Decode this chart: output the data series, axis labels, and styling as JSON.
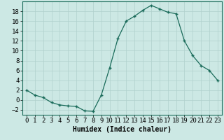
{
  "x": [
    0,
    1,
    2,
    3,
    4,
    5,
    6,
    7,
    8,
    9,
    10,
    11,
    12,
    13,
    14,
    15,
    16,
    17,
    18,
    19,
    20,
    21,
    22,
    23
  ],
  "y": [
    2,
    1,
    0.5,
    -0.5,
    -1,
    -1.2,
    -1.3,
    -2.2,
    -2.3,
    1,
    6.5,
    12.5,
    16,
    17,
    18.2,
    19.2,
    18.5,
    17.8,
    17.5,
    12,
    9,
    7,
    6,
    4
  ],
  "line_color": "#1a6b5a",
  "marker": "+",
  "marker_size": 3,
  "marker_edge_width": 1.0,
  "line_width": 0.9,
  "bg_color": "#cce8e4",
  "grid_color": "#b0d0cc",
  "xlabel": "Humidex (Indice chaleur)",
  "ylim": [
    -3,
    20
  ],
  "xlim": [
    -0.5,
    23.5
  ],
  "yticks": [
    -2,
    0,
    2,
    4,
    6,
    8,
    10,
    12,
    14,
    16,
    18
  ],
  "xticks": [
    0,
    1,
    2,
    3,
    4,
    5,
    6,
    7,
    8,
    9,
    10,
    11,
    12,
    13,
    14,
    15,
    16,
    17,
    18,
    19,
    20,
    21,
    22,
    23
  ],
  "xlabel_fontsize": 7,
  "tick_fontsize": 6.5,
  "fig_width": 3.2,
  "fig_height": 2.0,
  "dpi": 100
}
